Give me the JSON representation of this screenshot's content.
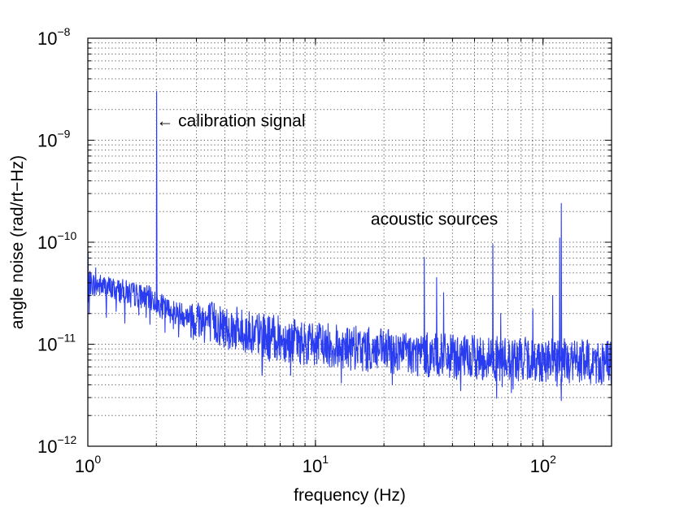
{
  "chart_data": {
    "type": "line",
    "xlabel": "frequency (Hz)",
    "ylabel": "angle noise (rad/rt−Hz)",
    "xscale": "log",
    "yscale": "log",
    "xlim": [
      1,
      200
    ],
    "ylim": [
      1e-12,
      1e-08
    ],
    "grid": true,
    "grid_style": "dotted",
    "line_color": "#2a3cf0",
    "x_ticks": [
      {
        "base": "10",
        "exp": "0",
        "value": 1
      },
      {
        "base": "10",
        "exp": "1",
        "value": 10
      },
      {
        "base": "10",
        "exp": "2",
        "value": 100
      }
    ],
    "y_ticks": [
      {
        "base": "10",
        "exp": "−8",
        "value": 1e-08
      },
      {
        "base": "10",
        "exp": "−9",
        "value": 1e-09
      },
      {
        "base": "10",
        "exp": "−10",
        "value": 1e-10
      },
      {
        "base": "10",
        "exp": "−11",
        "value": 1e-11
      },
      {
        "base": "10",
        "exp": "−12",
        "value": 1e-12
      }
    ],
    "annotations": [
      {
        "text": "← calibration signal",
        "x": 2.0,
        "y": 1.2e-09
      },
      {
        "text": "acoustic sources",
        "x": 17.5,
        "y": 1.3e-10
      }
    ],
    "series": [
      {
        "floor": [
          [
            1.0,
            4e-11
          ],
          [
            1.5,
            3.2e-11
          ],
          [
            1.9,
            2.8e-11
          ],
          [
            2.2,
            2.2e-11
          ],
          [
            3.0,
            1.8e-11
          ],
          [
            4.0,
            1.5e-11
          ],
          [
            6.0,
            1.2e-11
          ],
          [
            10.0,
            1e-11
          ],
          [
            20.0,
            8.5e-12
          ],
          [
            40.0,
            7.5e-12
          ],
          [
            100.0,
            7e-12
          ],
          [
            200.0,
            6.5e-12
          ]
        ],
        "peaks": [
          {
            "x": 1.0,
            "y": 8e-11
          },
          {
            "x": 1.08,
            "y": 5.6e-11
          },
          {
            "x": 2.0,
            "y": 3e-09
          },
          {
            "x": 30.0,
            "y": 7e-11
          },
          {
            "x": 34.0,
            "y": 4.5e-11
          },
          {
            "x": 36.5,
            "y": 3.2e-11
          },
          {
            "x": 60.0,
            "y": 9.5e-11
          },
          {
            "x": 65.0,
            "y": 2e-11
          },
          {
            "x": 90.0,
            "y": 2.2e-11
          },
          {
            "x": 110.0,
            "y": 3e-11
          },
          {
            "x": 118.0,
            "y": 1.1e-10
          },
          {
            "x": 120.0,
            "y": 2.4e-10
          }
        ]
      }
    ]
  }
}
